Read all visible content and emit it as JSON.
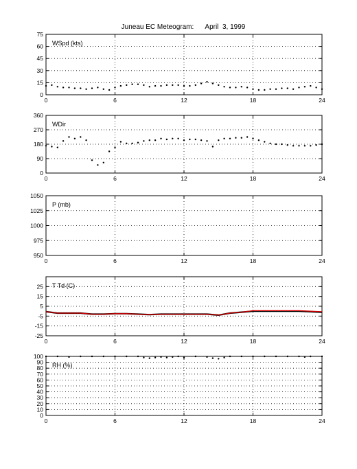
{
  "title": "Juneau EC Meteogram:      April  3, 1999",
  "chart_data": [
    {
      "type": "scatter",
      "label": "WSpd (kts)",
      "x_ticks": [
        0,
        6,
        12,
        18,
        24
      ],
      "y_ticks": [
        0,
        15,
        30,
        45,
        60,
        75
      ],
      "xlim": [
        0,
        24
      ],
      "ylim": [
        0,
        75
      ],
      "grid": true,
      "series": [
        {
          "color": "#000000",
          "style": "dots",
          "x": [
            0,
            0.5,
            1,
            1.5,
            2,
            2.5,
            3,
            3.5,
            4,
            4.5,
            5,
            5.5,
            6,
            6.5,
            7,
            7.5,
            8,
            8.5,
            9,
            9.5,
            10,
            10.5,
            11,
            11.5,
            12,
            12.5,
            13,
            13.5,
            14,
            14.5,
            15,
            15.5,
            16,
            16.5,
            17,
            17.5,
            18,
            18.5,
            19,
            19.5,
            20,
            20.5,
            21,
            21.5,
            22,
            22.5,
            23,
            23.5,
            24
          ],
          "y": [
            11,
            12,
            10,
            9,
            9,
            8,
            8,
            7,
            8,
            9,
            7,
            6,
            9,
            11,
            12,
            13,
            13,
            12,
            10,
            11,
            11,
            12,
            12,
            12,
            11,
            11,
            12,
            14,
            16,
            14,
            12,
            10,
            9,
            9,
            10,
            9,
            7,
            6,
            6,
            7,
            7,
            8,
            8,
            7,
            9,
            10,
            11,
            9,
            7
          ]
        }
      ]
    },
    {
      "type": "scatter",
      "label": "WDir",
      "x_ticks": [
        0,
        6,
        12,
        18,
        24
      ],
      "y_ticks": [
        0,
        90,
        180,
        270,
        360
      ],
      "xlim": [
        0,
        24
      ],
      "ylim": [
        0,
        360
      ],
      "grid": true,
      "series": [
        {
          "color": "#000000",
          "style": "dots",
          "x": [
            0,
            0.5,
            1,
            1.5,
            2,
            2.5,
            3,
            3.5,
            4,
            4.5,
            5,
            5.5,
            6,
            6.5,
            7,
            7.5,
            8,
            8.5,
            9,
            9.5,
            10,
            10.5,
            11,
            11.5,
            12,
            12.5,
            13,
            13.5,
            14,
            14.5,
            15,
            15.5,
            16,
            16.5,
            17,
            17.5,
            18,
            18.5,
            19,
            19.5,
            20,
            20.5,
            21,
            21.5,
            22,
            22.5,
            23,
            23.5,
            24
          ],
          "y": [
            170,
            165,
            160,
            200,
            225,
            215,
            225,
            205,
            80,
            50,
            65,
            135,
            160,
            195,
            185,
            185,
            190,
            200,
            205,
            205,
            215,
            210,
            215,
            215,
            205,
            210,
            210,
            205,
            200,
            165,
            205,
            215,
            215,
            220,
            220,
            225,
            215,
            205,
            195,
            185,
            180,
            180,
            175,
            170,
            170,
            170,
            170,
            175,
            180
          ]
        }
      ]
    },
    {
      "type": "line",
      "label": "P (mb)",
      "x_ticks": [
        0,
        6,
        12,
        18,
        24
      ],
      "y_ticks": [
        950,
        975,
        1000,
        1025,
        1050
      ],
      "xlim": [
        0,
        24
      ],
      "ylim": [
        950,
        1050
      ],
      "grid": true,
      "series": []
    },
    {
      "type": "line",
      "label": "T Td (C)",
      "x_ticks": [
        0,
        6,
        12,
        18,
        24
      ],
      "y_ticks": [
        -25,
        -15,
        -5,
        5,
        15,
        25
      ],
      "xlim": [
        0,
        24
      ],
      "ylim": [
        -25,
        35
      ],
      "grid": true,
      "series": [
        {
          "color": "#000000",
          "style": "line",
          "x": [
            0,
            1,
            2,
            3,
            4,
            5,
            6,
            7,
            8,
            9,
            10,
            11,
            12,
            13,
            14,
            15,
            16,
            17,
            18,
            19,
            20,
            21,
            22,
            23,
            24
          ],
          "y": [
            -0.5,
            -2,
            -2,
            -2,
            -3,
            -3,
            -2.5,
            -2.5,
            -3,
            -3.5,
            -3,
            -3,
            -3,
            -3,
            -3,
            -4,
            -2,
            -1,
            0,
            0,
            0,
            0,
            0,
            -0.5,
            -1
          ]
        },
        {
          "color": "#dd0000",
          "style": "line",
          "x": [
            0,
            1,
            2,
            3,
            4,
            5,
            6,
            7,
            8,
            9,
            10,
            11,
            12,
            13,
            14,
            15,
            16,
            17,
            18,
            19,
            20,
            21,
            22,
            23,
            24
          ],
          "y": [
            -0.5,
            -2,
            -2,
            -2,
            -3,
            -3,
            -2.5,
            -2.5,
            -3,
            -3.5,
            -3,
            -3,
            -3,
            -3,
            -3,
            -4,
            -2,
            -1,
            0.5,
            0.5,
            0.5,
            0.5,
            0.5,
            0,
            -0.5
          ]
        }
      ]
    },
    {
      "type": "scatter",
      "label": "RH (%)",
      "x_ticks": [
        0,
        6,
        12,
        18,
        24
      ],
      "y_ticks": [
        0,
        10,
        20,
        30,
        40,
        50,
        60,
        70,
        80,
        90,
        100
      ],
      "xlim": [
        0,
        24
      ],
      "ylim": [
        0,
        100
      ],
      "grid": true,
      "series": [
        {
          "color": "#000000",
          "style": "dots",
          "x": [
            0,
            1,
            2,
            3,
            4,
            5,
            6,
            7,
            8,
            8.5,
            9,
            9.5,
            10,
            10.5,
            11,
            11.5,
            12,
            13,
            14,
            14.5,
            15,
            15.5,
            16,
            17,
            18,
            19,
            20,
            21,
            22,
            22.5,
            23,
            24
          ],
          "y": [
            100,
            100,
            99,
            100,
            100,
            100,
            100,
            100,
            100,
            98,
            97,
            98,
            99,
            98,
            99,
            100,
            98,
            100,
            99,
            97,
            96,
            98,
            100,
            100,
            100,
            100,
            100,
            100,
            100,
            99,
            100,
            100
          ]
        }
      ]
    }
  ]
}
